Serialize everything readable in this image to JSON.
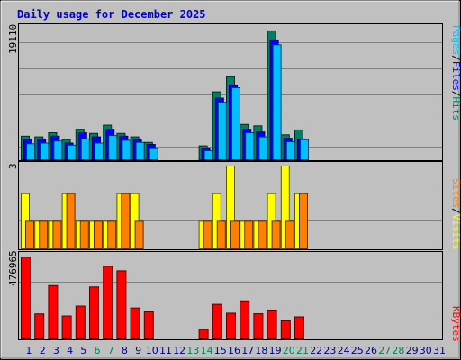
{
  "chart_data": {
    "type": "bar",
    "title": "Daily usage for December 2025",
    "categories": [
      "1",
      "2",
      "3",
      "4",
      "5",
      "6",
      "7",
      "8",
      "9",
      "10",
      "11",
      "12",
      "13",
      "14",
      "15",
      "16",
      "17",
      "18",
      "19",
      "20",
      "21",
      "22",
      "23",
      "24",
      "25",
      "26",
      "27",
      "28",
      "29",
      "30",
      "31"
    ],
    "weekend_days": [
      "6",
      "7",
      "13",
      "14",
      "20",
      "21",
      "27",
      "28"
    ],
    "panels": [
      {
        "max_label": "19110",
        "ylim": [
          0,
          19110
        ],
        "legend": [
          {
            "label": "Pages",
            "color": "#00c0ff"
          },
          {
            "label": "/",
            "color": "#000000"
          },
          {
            "label": "Files",
            "color": "#0000ff"
          },
          {
            "label": "/",
            "color": "#000000"
          },
          {
            "label": "Hits",
            "color": "#008060"
          }
        ],
        "series": [
          {
            "name": "Hits",
            "color": "#008060",
            "values": [
              3400,
              3300,
              3900,
              2900,
              4400,
              3800,
              5000,
              3800,
              3300,
              2500,
              0,
              0,
              0,
              2000,
              9800,
              12000,
              5100,
              4900,
              18600,
              3600,
              4300,
              0,
              0,
              0,
              0,
              0,
              0,
              0,
              0,
              0,
              0
            ]
          },
          {
            "name": "Files",
            "color": "#0000ff",
            "values": [
              2900,
              2900,
              3400,
              2400,
              3900,
              3300,
              4400,
              3400,
              2900,
              2200,
              0,
              0,
              0,
              1600,
              8900,
              10800,
              4400,
              4000,
              17300,
              3100,
              3000,
              0,
              0,
              0,
              0,
              0,
              0,
              0,
              0,
              0,
              0
            ]
          },
          {
            "name": "Pages",
            "color": "#00c0ff",
            "values": [
              2300,
              2400,
              2700,
              2100,
              3000,
              2400,
              3500,
              2800,
              2500,
              1600,
              0,
              0,
              0,
              1300,
              8300,
              10400,
              3900,
              3300,
              16600,
              2600,
              2900,
              0,
              0,
              0,
              0,
              0,
              0,
              0,
              0,
              0,
              0
            ]
          }
        ]
      },
      {
        "max_label": "3",
        "ylim": [
          0,
          3
        ],
        "legend": [
          {
            "label": "Sites",
            "color": "#ff8000"
          },
          {
            "label": "/",
            "color": "#000000"
          },
          {
            "label": "Visits",
            "color": "#ffff00"
          }
        ],
        "series": [
          {
            "name": "Visits",
            "color": "#ffff00",
            "values": [
              2,
              1,
              1,
              2,
              1,
              1,
              1,
              2,
              2,
              0,
              0,
              0,
              0,
              1,
              2,
              3,
              1,
              1,
              2,
              3,
              2,
              0,
              0,
              0,
              0,
              0,
              0,
              0,
              0,
              0,
              0
            ]
          },
          {
            "name": "Sites",
            "color": "#ff8000",
            "values": [
              1,
              1,
              1,
              2,
              1,
              1,
              1,
              2,
              1,
              0,
              0,
              0,
              0,
              1,
              1,
              1,
              1,
              1,
              1,
              1,
              2,
              0,
              0,
              0,
              0,
              0,
              0,
              0,
              0,
              0,
              0
            ]
          }
        ]
      },
      {
        "max_label": "476965",
        "ylim": [
          0,
          476965
        ],
        "legend": [
          {
            "label": "KBytes",
            "color": "#ff0000"
          }
        ],
        "series": [
          {
            "name": "KBytes",
            "color": "#ff0000",
            "values": [
              470000,
              144000,
              307000,
              132000,
              189000,
              299000,
              418000,
              392000,
              178000,
              156000,
              0,
              0,
              0,
              54000,
              199000,
              148000,
              219000,
              145000,
              166000,
              104000,
              127000,
              0,
              0,
              0,
              0,
              0,
              0,
              0,
              0,
              0,
              0
            ]
          }
        ]
      }
    ],
    "colors": {
      "background": "#ffffff",
      "plot_bg": "#c0c0c0",
      "title": "#0000cc",
      "weekday_label": "#000080",
      "weekend_label": "#00805c",
      "grid": "#808080"
    }
  }
}
